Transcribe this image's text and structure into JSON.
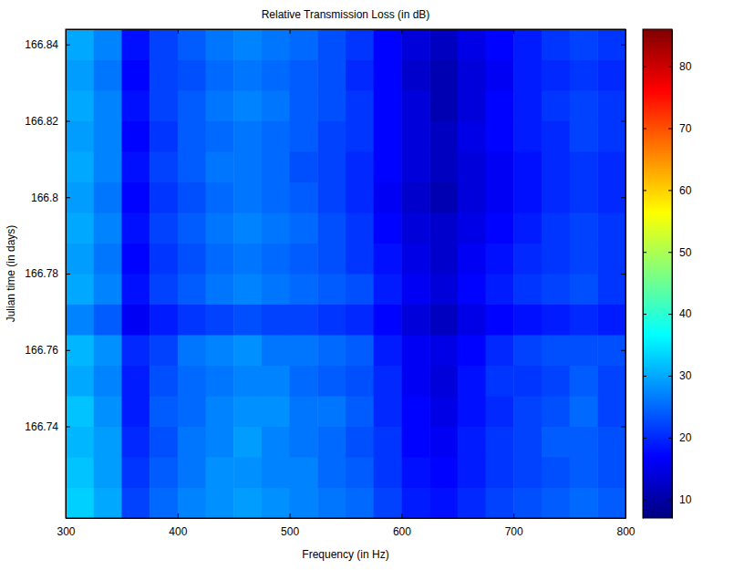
{
  "chart_data": {
    "type": "heatmap",
    "title": "Relative Transmission Loss (in dB)",
    "x_label": "Frequency (in Hz)",
    "y_label": "Julian time (in days)",
    "xlim": [
      300,
      800
    ],
    "xticks": [
      300,
      400,
      500,
      600,
      700,
      800
    ],
    "ylim": [
      166.716,
      166.844
    ],
    "yticks": [
      166.74,
      166.76,
      166.78,
      166.8,
      166.82,
      166.84
    ],
    "x_bins": [
      300,
      325,
      350,
      375,
      400,
      425,
      450,
      475,
      500,
      525,
      550,
      575,
      600,
      625,
      650,
      675,
      700,
      725,
      750,
      775,
      800
    ],
    "y_bins": [
      166.716,
      166.724,
      166.732,
      166.74,
      166.748,
      166.756,
      166.764,
      166.772,
      166.78,
      166.788,
      166.796,
      166.804,
      166.812,
      166.82,
      166.828,
      166.836,
      166.844
    ],
    "values": [
      [
        33,
        30,
        22,
        25,
        27,
        28,
        29,
        28,
        27,
        26,
        25,
        22,
        19,
        18,
        20,
        22,
        23,
        24,
        25,
        24
      ],
      [
        32,
        29,
        21,
        24,
        26,
        28,
        28,
        27,
        27,
        25,
        24,
        21,
        18,
        17,
        19,
        21,
        22,
        23,
        24,
        23
      ],
      [
        31,
        29,
        20,
        23,
        26,
        27,
        29,
        27,
        26,
        25,
        23,
        21,
        17,
        16,
        19,
        21,
        22,
        24,
        24,
        23
      ],
      [
        32,
        28,
        19,
        24,
        25,
        27,
        28,
        28,
        26,
        26,
        24,
        20,
        17,
        15,
        18,
        20,
        22,
        23,
        25,
        22
      ],
      [
        30,
        27,
        19,
        23,
        25,
        26,
        27,
        27,
        25,
        24,
        23,
        20,
        16,
        14,
        18,
        21,
        21,
        22,
        24,
        22
      ],
      [
        31,
        28,
        20,
        22,
        26,
        27,
        28,
        26,
        26,
        25,
        24,
        19,
        16,
        15,
        17,
        20,
        22,
        23,
        23,
        23
      ],
      [
        27,
        24,
        16,
        19,
        21,
        22,
        23,
        22,
        22,
        21,
        20,
        17,
        14,
        12,
        15,
        17,
        18,
        19,
        20,
        19
      ],
      [
        30,
        27,
        18,
        22,
        24,
        26,
        27,
        26,
        25,
        24,
        23,
        19,
        16,
        14,
        17,
        19,
        21,
        22,
        23,
        21
      ],
      [
        29,
        26,
        17,
        21,
        23,
        25,
        26,
        25,
        24,
        23,
        21,
        18,
        15,
        13,
        16,
        18,
        20,
        21,
        22,
        21
      ],
      [
        30,
        27,
        18,
        22,
        24,
        26,
        27,
        26,
        25,
        23,
        21,
        17,
        14,
        13,
        15,
        17,
        19,
        21,
        22,
        21
      ],
      [
        29,
        26,
        17,
        21,
        23,
        25,
        26,
        25,
        24,
        22,
        20,
        16,
        13,
        11,
        14,
        16,
        18,
        20,
        21,
        20
      ],
      [
        30,
        27,
        18,
        22,
        24,
        26,
        26,
        25,
        23,
        22,
        20,
        17,
        14,
        12,
        14,
        16,
        18,
        20,
        21,
        20
      ],
      [
        29,
        27,
        17,
        21,
        24,
        25,
        26,
        25,
        24,
        22,
        21,
        17,
        14,
        12,
        15,
        17,
        19,
        20,
        22,
        21
      ],
      [
        30,
        27,
        18,
        22,
        24,
        26,
        27,
        26,
        24,
        23,
        21,
        17,
        14,
        11,
        14,
        17,
        19,
        21,
        22,
        21
      ],
      [
        29,
        26,
        17,
        22,
        23,
        25,
        26,
        25,
        24,
        23,
        20,
        17,
        13,
        11,
        14,
        16,
        19,
        20,
        21,
        20
      ],
      [
        30,
        27,
        18,
        22,
        24,
        26,
        27,
        26,
        25,
        23,
        21,
        17,
        14,
        12,
        15,
        17,
        19,
        21,
        22,
        21
      ]
    ],
    "color_range": [
      7,
      86
    ],
    "color_ticks": [
      10,
      20,
      30,
      40,
      50,
      60,
      70,
      80
    ]
  }
}
